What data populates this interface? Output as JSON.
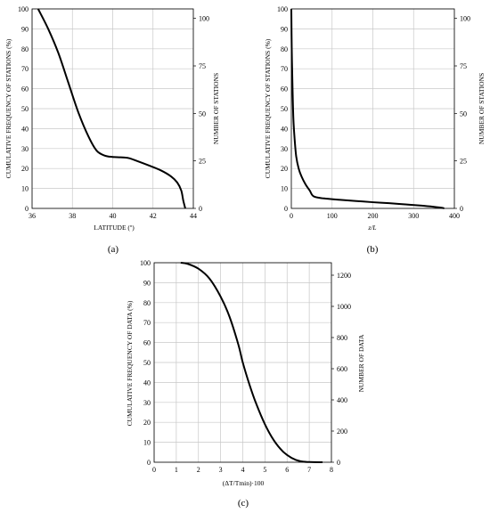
{
  "chart_data": [
    {
      "panel": "a",
      "panel_label": "(a)",
      "type": "line",
      "xlabel": "LATITUDE (º)",
      "ylabel": "CUMULATIVE FREQUENCY OF STATIONS (%)",
      "y2label": "NUMBER OF STATIONS",
      "xlim": [
        36,
        44
      ],
      "ylim": [
        0,
        100
      ],
      "y2lim": [
        0,
        105
      ],
      "xticks": [
        "36",
        "38",
        "40",
        "42",
        "44"
      ],
      "yticks": [
        "0",
        "10",
        "20",
        "30",
        "40",
        "50",
        "60",
        "70",
        "80",
        "90",
        "100"
      ],
      "y2ticks": [
        "0",
        "25",
        "50",
        "75",
        "100"
      ],
      "grid": true,
      "series": [
        {
          "x": [
            36.3,
            36.8,
            37.3,
            37.8,
            38.3,
            38.8,
            39.2,
            39.6,
            40.0,
            40.4,
            40.8,
            41.2,
            41.8,
            42.4,
            42.9,
            43.2,
            43.4,
            43.5,
            43.6
          ],
          "y": [
            100,
            90,
            78,
            63,
            48,
            36,
            29,
            26.5,
            25.8,
            25.6,
            25.2,
            23.8,
            21.5,
            19,
            16,
            13,
            9,
            4,
            0
          ]
        }
      ]
    },
    {
      "panel": "b",
      "panel_label": "(b)",
      "type": "line",
      "xlabel": "z/L",
      "ylabel": "CUMULATIVE FREQUENCY OF STATIONS (%)",
      "y2label": "NUMBER OF STATIONS",
      "xlim": [
        0,
        400
      ],
      "ylim": [
        0,
        100
      ],
      "y2lim": [
        0,
        105
      ],
      "xticks": [
        "0",
        "100",
        "200",
        "300",
        "400"
      ],
      "yticks": [
        "0",
        "10",
        "20",
        "30",
        "40",
        "50",
        "60",
        "70",
        "80",
        "90",
        "100"
      ],
      "y2ticks": [
        "0",
        "25",
        "50",
        "75",
        "100"
      ],
      "grid": true,
      "series": [
        {
          "x": [
            0,
            1,
            3,
            5,
            8,
            12,
            18,
            25,
            35,
            45,
            55,
            80,
            120,
            160,
            200,
            240,
            280,
            320,
            350,
            370,
            375
          ],
          "y": [
            100,
            80,
            60,
            45,
            35,
            26,
            20,
            16,
            12,
            9,
            6,
            5,
            4.3,
            3.7,
            3.1,
            2.6,
            2,
            1.4,
            0.8,
            0.3,
            0
          ]
        }
      ]
    },
    {
      "panel": "c",
      "panel_label": "(c)",
      "type": "line",
      "xlabel": "(ΔT/Tmin)·100",
      "ylabel": "CUMULATIVE FREQUENCY OF DATA (%)",
      "y2label": "NUMBER OF DATA",
      "xlim": [
        0,
        8
      ],
      "ylim": [
        0,
        100
      ],
      "y2lim": [
        0,
        1280
      ],
      "xticks": [
        "0",
        "1",
        "2",
        "3",
        "4",
        "5",
        "6",
        "7",
        "8"
      ],
      "yticks": [
        "0",
        "10",
        "20",
        "30",
        "40",
        "50",
        "60",
        "70",
        "80",
        "90",
        "100"
      ],
      "y2ticks": [
        "0",
        "200",
        "400",
        "600",
        "800",
        "1000",
        "1200"
      ],
      "grid": true,
      "series": [
        {
          "x": [
            1.2,
            1.5,
            2.0,
            2.5,
            3.0,
            3.4,
            3.8,
            4.0,
            4.3,
            4.6,
            5.0,
            5.4,
            5.8,
            6.2,
            6.6,
            7.0,
            7.6
          ],
          "y": [
            100,
            99.5,
            97,
            92,
            83,
            73,
            59,
            50,
            39,
            29.5,
            19,
            11,
            5.5,
            2.2,
            0.5,
            0.1,
            0
          ]
        }
      ]
    }
  ]
}
